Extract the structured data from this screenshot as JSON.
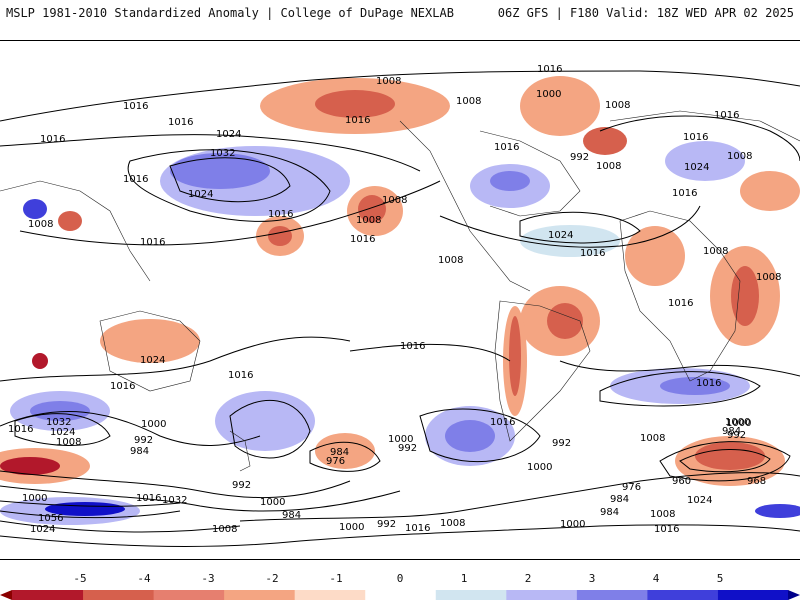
{
  "header": {
    "left_title": "MSLP 1981-2010 Standardized Anomaly | College of DuPage NEXLAB",
    "right_title": "06Z GFS | F180 Valid: 18Z WED APR 02 2025"
  },
  "colorbar": {
    "ticks": [
      "-5",
      "-4",
      "-3",
      "-2",
      "-1",
      "0",
      "1",
      "2",
      "3",
      "4",
      "5"
    ],
    "colors": [
      "#b2182b",
      "#d6604d",
      "#e67f6f",
      "#f4a582",
      "#fddbc7",
      "#ffffff",
      "#d1e5f0",
      "#b8b8f5",
      "#7f7fe8",
      "#3f3fdb",
      "#1010c8"
    ]
  },
  "map": {
    "isobar_labels": [
      "1016",
      "1008",
      "1016",
      "1016",
      "1016",
      "1024",
      "1032",
      "1024",
      "1016",
      "1008",
      "1016",
      "1016",
      "1016",
      "1008",
      "1008",
      "1008",
      "1016",
      "1024",
      "1016",
      "1016",
      "1000",
      "1008",
      "1016",
      "992",
      "1008",
      "1016",
      "1024",
      "1008",
      "1008",
      "1016",
      "1008",
      "1016",
      "1008",
      "1016",
      "1016",
      "1016",
      "1016",
      "1024",
      "1016",
      "1032",
      "1024",
      "1008",
      "1000",
      "992",
      "984",
      "1016",
      "1000",
      "992",
      "984",
      "976",
      "1000",
      "992",
      "1008",
      "1000",
      "992",
      "984",
      "1032",
      "1016",
      "1000",
      "1056",
      "1024",
      "1008",
      "1000",
      "992",
      "1008",
      "1016",
      "1000",
      "984",
      "1000",
      "960",
      "968",
      "984",
      "1024",
      "976",
      "1000",
      "992",
      "1008",
      "1016",
      "984"
    ]
  }
}
